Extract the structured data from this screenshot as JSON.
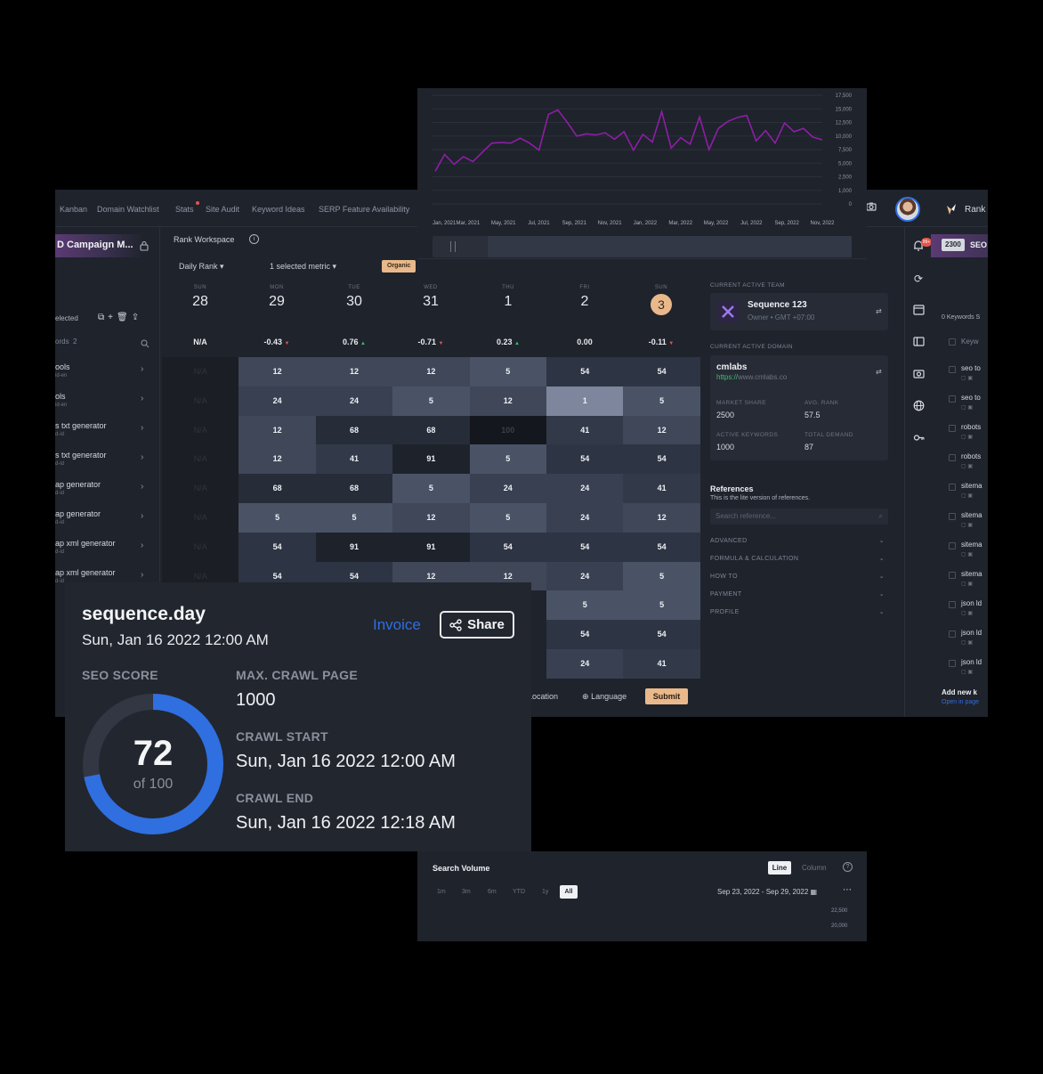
{
  "nav": {
    "items": [
      "Kanban",
      "Domain Watchlist",
      "Stats",
      "Site Audit",
      "Keyword Ideas",
      "SERP Feature Availability"
    ],
    "brand": "Rank"
  },
  "campaign": {
    "title": "D Campaign M...",
    "selected_text": "elected",
    "keywords_header": "ords",
    "keywords_count": "2"
  },
  "keywords": [
    {
      "name": "ools",
      "sub": "id-en"
    },
    {
      "name": "ols",
      "sub": "id-en"
    },
    {
      "name": "s txt generator",
      "sub": "d-id"
    },
    {
      "name": "s txt generator",
      "sub": "d-id"
    },
    {
      "name": "ap generator",
      "sub": "d-id"
    },
    {
      "name": "ap generator",
      "sub": "d-id"
    },
    {
      "name": "ap xml generator",
      "sub": "d-id"
    },
    {
      "name": "ap xml generator",
      "sub": "d-id"
    }
  ],
  "workspace": {
    "title": "Rank Workspace",
    "daily_rank": "Daily Rank",
    "metric": "1 selected metric",
    "organic": "Organic"
  },
  "days": [
    {
      "dow": "SUN",
      "num": "28",
      "delta": "N/A",
      "trend": ""
    },
    {
      "dow": "MON",
      "num": "29",
      "delta": "-0.43",
      "trend": "down"
    },
    {
      "dow": "TUE",
      "num": "30",
      "delta": "0.76",
      "trend": "up"
    },
    {
      "dow": "WED",
      "num": "31",
      "delta": "-0.71",
      "trend": "down"
    },
    {
      "dow": "THU",
      "num": "1",
      "delta": "0.23",
      "trend": "up"
    },
    {
      "dow": "FRI",
      "num": "2",
      "delta": "0.00",
      "trend": ""
    },
    {
      "dow": "SUN",
      "num": "3",
      "delta": "-0.11",
      "trend": "down",
      "today": true
    }
  ],
  "grid": {
    "na_label": "N/A",
    "rows": [
      [
        "N/A",
        "12",
        "12",
        "12",
        "5",
        "54",
        "54"
      ],
      [
        "N/A",
        "24",
        "24",
        "5",
        "12",
        "1",
        "5"
      ],
      [
        "N/A",
        "12",
        "68",
        "68",
        "100",
        "41",
        "12"
      ],
      [
        "N/A",
        "12",
        "41",
        "91",
        "5",
        "54",
        "54"
      ],
      [
        "N/A",
        "68",
        "68",
        "5",
        "24",
        "24",
        "41"
      ],
      [
        "N/A",
        "5",
        "5",
        "12",
        "5",
        "24",
        "12"
      ],
      [
        "N/A",
        "54",
        "91",
        "91",
        "54",
        "54",
        "54"
      ],
      [
        "N/A",
        "54",
        "54",
        "12",
        "12",
        "24",
        "5"
      ],
      [
        "N/A",
        "",
        "",
        "",
        "",
        "5",
        "5"
      ],
      [
        "N/A",
        "",
        "",
        "",
        "",
        "54",
        "54"
      ],
      [
        "N/A",
        "",
        "",
        "",
        "",
        "24",
        "41"
      ]
    ]
  },
  "filters": {
    "location": "Location",
    "language": "Language",
    "submit": "Submit"
  },
  "team": {
    "label": "CURRENT ACTIVE TEAM",
    "name": "Sequence 123",
    "sub": "Owner • GMT +07:00"
  },
  "domain": {
    "label": "CURRENT ACTIVE DOMAIN",
    "name": "cmlabs",
    "url_prefix": "https://",
    "url_rest": "www.cmlabs.co",
    "market_share_label": "MARKET SHARE",
    "market_share": "2500",
    "avg_rank_label": "AVG. RANK",
    "avg_rank": "57.5",
    "active_kw_label": "ACTIVE KEYWORDS",
    "active_kw": "1000",
    "total_demand_label": "TOTAL DEMAND",
    "total_demand": "87"
  },
  "references": {
    "title": "References",
    "subtitle": "This is the lite version of references.",
    "search_placeholder": "Search reference...",
    "sections": [
      "ADVANCED",
      "FORMULA & CALCULATION",
      "HOW TO",
      "PAYMENT",
      "PROFILE"
    ]
  },
  "farcol": {
    "badge": "2300",
    "seo": "SEO",
    "count": "0 Keywords S",
    "header": "Keyw",
    "items": [
      "seo to",
      "seo to",
      "robots",
      "robots",
      "sitema",
      "sitema",
      "sitema",
      "sitema",
      "json ld",
      "json ld",
      "json ld"
    ],
    "add": "Add new k",
    "open": "Open in page"
  },
  "chart_data": {
    "type": "line",
    "title": "",
    "x_ticks": [
      "Jan, 2021",
      "Mar, 2021",
      "May, 2021",
      "Jul, 2021",
      "Sep, 2021",
      "Nov, 2021",
      "Jan, 2022",
      "Mar, 2022",
      "May, 2022",
      "Jul, 2022",
      "Sep, 2022",
      "Nov, 2022"
    ],
    "y_ticks": [
      "0",
      "1,000",
      "2,500",
      "5,000",
      "7,500",
      "10,000",
      "12,500",
      "15,000",
      "17,500"
    ],
    "ylim": [
      0,
      17500
    ],
    "color": "#8e1ea6",
    "values": [
      3500,
      6600,
      4800,
      6200,
      5300,
      7000,
      8700,
      8800,
      8700,
      9600,
      8700,
      7400,
      14000,
      14800,
      12500,
      10000,
      10400,
      10200,
      10600,
      9400,
      10800,
      7400,
      10300,
      8900,
      14500,
      7800,
      9700,
      8500,
      13500,
      7500,
      11400,
      12700,
      13400,
      13800,
      9100,
      11000,
      8700,
      12400,
      10800,
      11400,
      9800,
      9300
    ]
  },
  "search_volume": {
    "title": "Search Volume",
    "line": "Line",
    "column": "Column",
    "ranges": [
      "1m",
      "3m",
      "6m",
      "YTD",
      "1y",
      "All"
    ],
    "date_range": "Sep 23, 2022 - Sep 29, 2022",
    "y_ticks": [
      "22,500",
      "20,000"
    ]
  },
  "card": {
    "title": "sequence.day",
    "date": "Sun, Jan 16 2022 12:00 AM",
    "invoice": "Invoice",
    "share": "Share",
    "seo_score_label": "SEO SCORE",
    "score": "72",
    "score_max": 100,
    "score_of": "of 100",
    "max_crawl_label": "MAX. CRAWL PAGE",
    "max_crawl": "1000",
    "crawl_start_label": "CRAWL START",
    "crawl_start": "Sun, Jan 16 2022 12:00 AM",
    "crawl_end_label": "CRAWL END",
    "crawl_end": "Sun, Jan 16 2022 12:18 AM",
    "accent": "#2f6fe0"
  }
}
